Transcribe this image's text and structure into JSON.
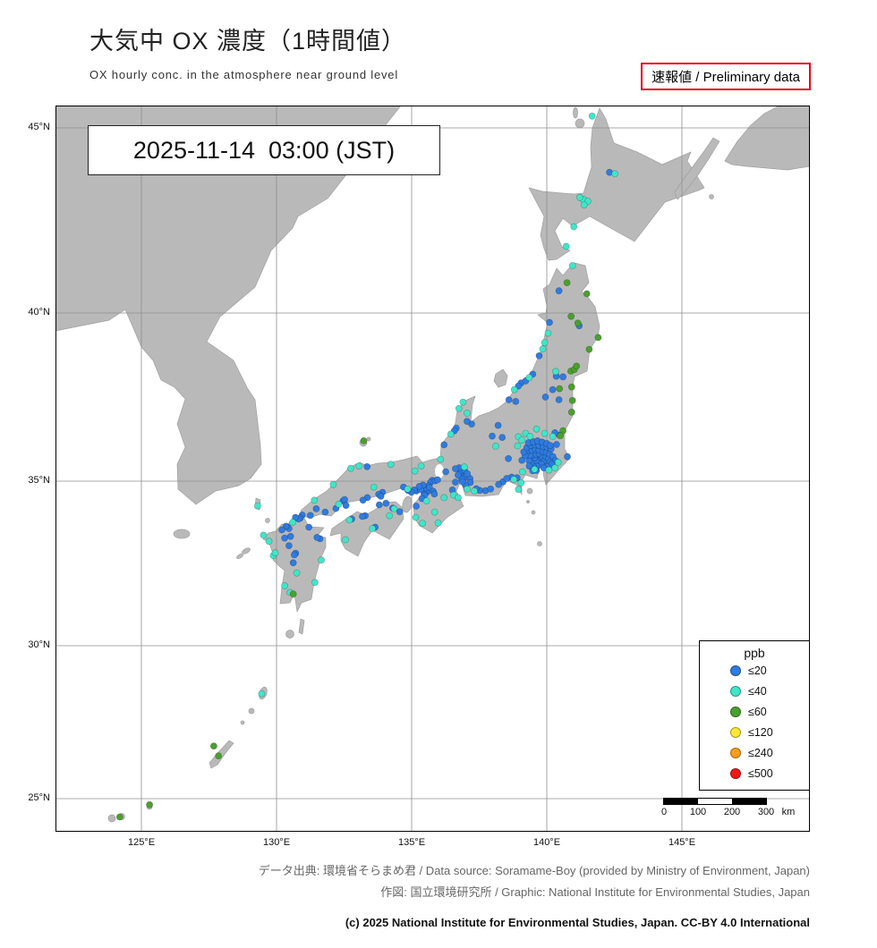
{
  "header": {
    "title": "大気中 OX 濃度（1時間値）",
    "subtitle": "OX hourly conc. in the atmosphere near ground level",
    "preliminary": "速報値 / Preliminary data"
  },
  "map": {
    "datetime": "2025-11-14  03:00 (JST)",
    "lat_ticks": [
      {
        "value": 45,
        "label": "45°N"
      },
      {
        "value": 40,
        "label": "40°N"
      },
      {
        "value": 35,
        "label": "35°N"
      },
      {
        "value": 30,
        "label": "30°N"
      },
      {
        "value": 25,
        "label": "25°N"
      }
    ],
    "lon_ticks": [
      {
        "value": 125,
        "label": "125°E"
      },
      {
        "value": 130,
        "label": "130°E"
      },
      {
        "value": 135,
        "label": "135°E"
      },
      {
        "value": 140,
        "label": "140°E"
      },
      {
        "value": 145,
        "label": "145°E"
      }
    ],
    "stations": [
      [
        142.32,
        43.8,
        0
      ],
      [
        140.45,
        40.6,
        0
      ],
      [
        140.1,
        39.72,
        0
      ],
      [
        139.72,
        38.73,
        0
      ],
      [
        140.35,
        38.12,
        0
      ],
      [
        140.45,
        37.42,
        0
      ],
      [
        139.95,
        37.5,
        0
      ],
      [
        140.22,
        37.72,
        0
      ],
      [
        141.2,
        39.62,
        0
      ],
      [
        140.6,
        38.1,
        0
      ],
      [
        139.05,
        37.92,
        0
      ],
      [
        138.95,
        37.83,
        0
      ],
      [
        139.22,
        37.98,
        0
      ],
      [
        138.85,
        37.37,
        0
      ],
      [
        138.6,
        37.42,
        0
      ],
      [
        139.48,
        38.18,
        0
      ],
      [
        138.2,
        36.66,
        0
      ],
      [
        137.98,
        36.34,
        0
      ],
      [
        138.58,
        35.67,
        0
      ],
      [
        138.35,
        36.3,
        0
      ],
      [
        137.22,
        36.7,
        0
      ],
      [
        137.05,
        36.78,
        0
      ],
      [
        136.65,
        36.58,
        0
      ],
      [
        136.58,
        36.5,
        0
      ],
      [
        136.2,
        36.08,
        0
      ],
      [
        139.7,
        35.68,
        0
      ],
      [
        139.76,
        35.62,
        0
      ],
      [
        139.63,
        35.57,
        0
      ],
      [
        139.55,
        35.7,
        0
      ],
      [
        139.47,
        35.77,
        0
      ],
      [
        139.6,
        35.8,
        0
      ],
      [
        139.72,
        35.81,
        0
      ],
      [
        139.85,
        35.7,
        0
      ],
      [
        139.91,
        35.61,
        0
      ],
      [
        139.96,
        35.73,
        0
      ],
      [
        140.06,
        35.66,
        0
      ],
      [
        140.12,
        35.57,
        0
      ],
      [
        139.8,
        35.51,
        0
      ],
      [
        139.65,
        35.44,
        0
      ],
      [
        139.5,
        35.44,
        0
      ],
      [
        139.42,
        35.54,
        0
      ],
      [
        139.34,
        35.61,
        0
      ],
      [
        139.38,
        35.77,
        0
      ],
      [
        139.3,
        35.9,
        0
      ],
      [
        139.45,
        35.92,
        0
      ],
      [
        139.58,
        35.95,
        0
      ],
      [
        139.71,
        35.92,
        0
      ],
      [
        139.86,
        35.88,
        0
      ],
      [
        139.99,
        35.86,
        0
      ],
      [
        140.11,
        35.8,
        0
      ],
      [
        140.23,
        35.73,
        0
      ],
      [
        140.32,
        35.61,
        0
      ],
      [
        140.18,
        35.5,
        0
      ],
      [
        140.0,
        35.44,
        0
      ],
      [
        139.89,
        35.39,
        0
      ],
      [
        140.76,
        35.73,
        0
      ],
      [
        139.2,
        35.76,
        0
      ],
      [
        139.15,
        35.87,
        0
      ],
      [
        139.26,
        36.0,
        0
      ],
      [
        139.41,
        36.06,
        0
      ],
      [
        139.56,
        36.08,
        0
      ],
      [
        139.71,
        36.06,
        0
      ],
      [
        139.86,
        36.03,
        0
      ],
      [
        140.01,
        36.01,
        0
      ],
      [
        140.16,
        35.96,
        0
      ],
      [
        139.32,
        36.14,
        0
      ],
      [
        139.5,
        36.17,
        0
      ],
      [
        139.66,
        36.2,
        0
      ],
      [
        139.83,
        36.16,
        0
      ],
      [
        140.0,
        36.12,
        0
      ],
      [
        140.13,
        36.06,
        0
      ],
      [
        140.36,
        36.09,
        0
      ],
      [
        140.47,
        36.37,
        0
      ],
      [
        140.3,
        36.44,
        0
      ],
      [
        139.08,
        35.62,
        0
      ],
      [
        139.35,
        35.45,
        0
      ],
      [
        139.62,
        35.32,
        0
      ],
      [
        139.48,
        35.31,
        0
      ],
      [
        138.38,
        34.98,
        0
      ],
      [
        138.22,
        34.9,
        0
      ],
      [
        137.73,
        34.71,
        0
      ],
      [
        137.92,
        34.76,
        0
      ],
      [
        138.9,
        35.1,
        0
      ],
      [
        138.7,
        35.12,
        0
      ],
      [
        138.52,
        35.08,
        0
      ],
      [
        137.52,
        34.72,
        0
      ],
      [
        136.91,
        35.17,
        0
      ],
      [
        136.96,
        35.1,
        0
      ],
      [
        136.85,
        35.06,
        0
      ],
      [
        136.8,
        35.3,
        0
      ],
      [
        136.95,
        35.33,
        0
      ],
      [
        136.76,
        35.4,
        0
      ],
      [
        136.62,
        35.37,
        0
      ],
      [
        136.62,
        34.97,
        0
      ],
      [
        136.51,
        34.73,
        0
      ],
      [
        137.16,
        35.08,
        0
      ],
      [
        137.17,
        34.96,
        0
      ],
      [
        137.39,
        34.77,
        0
      ],
      [
        137.0,
        34.88,
        0
      ],
      [
        136.88,
        34.98,
        0
      ],
      [
        137.06,
        35.22,
        0
      ],
      [
        136.72,
        35.18,
        0
      ],
      [
        135.76,
        35.02,
        0
      ],
      [
        135.7,
        34.96,
        0
      ],
      [
        135.87,
        35.01,
        0
      ],
      [
        135.96,
        35.04,
        0
      ],
      [
        136.26,
        35.28,
        0
      ],
      [
        135.5,
        34.69,
        0
      ],
      [
        135.56,
        34.66,
        0
      ],
      [
        135.46,
        34.62,
        0
      ],
      [
        135.6,
        34.73,
        0
      ],
      [
        135.53,
        34.79,
        0
      ],
      [
        135.63,
        34.86,
        0
      ],
      [
        135.66,
        34.81,
        0
      ],
      [
        135.18,
        34.7,
        0
      ],
      [
        135.1,
        34.73,
        0
      ],
      [
        134.99,
        34.66,
        0
      ],
      [
        134.7,
        34.82,
        0
      ],
      [
        134.86,
        34.72,
        0
      ],
      [
        135.8,
        34.69,
        0
      ],
      [
        135.84,
        34.61,
        0
      ],
      [
        135.17,
        34.24,
        0
      ],
      [
        135.48,
        34.57,
        0
      ],
      [
        135.38,
        34.47,
        0
      ],
      [
        135.33,
        34.75,
        0
      ],
      [
        135.42,
        34.88,
        0
      ],
      [
        135.28,
        34.84,
        0
      ],
      [
        133.92,
        34.66,
        0
      ],
      [
        133.78,
        34.6,
        0
      ],
      [
        133.86,
        34.54,
        0
      ],
      [
        133.36,
        34.5,
        0
      ],
      [
        133.2,
        34.42,
        0
      ],
      [
        132.46,
        34.4,
        0
      ],
      [
        132.52,
        34.44,
        0
      ],
      [
        132.57,
        34.26,
        0
      ],
      [
        132.2,
        34.17,
        0
      ],
      [
        131.8,
        34.06,
        0
      ],
      [
        131.25,
        33.96,
        0
      ],
      [
        130.95,
        33.97,
        0
      ],
      [
        133.35,
        35.43,
        0
      ],
      [
        131.47,
        34.16,
        0
      ],
      [
        134.05,
        34.33,
        0
      ],
      [
        133.8,
        34.28,
        0
      ],
      [
        134.56,
        34.07,
        0
      ],
      [
        133.28,
        33.95,
        0
      ],
      [
        132.78,
        33.85,
        0
      ],
      [
        133.18,
        33.93,
        0
      ],
      [
        133.65,
        33.6,
        0
      ],
      [
        134.3,
        34.18,
        0
      ],
      [
        130.88,
        33.88,
        0
      ],
      [
        130.82,
        33.85,
        0
      ],
      [
        130.7,
        33.9,
        0
      ],
      [
        130.41,
        33.6,
        0
      ],
      [
        130.46,
        33.56,
        0
      ],
      [
        130.35,
        33.63,
        0
      ],
      [
        130.52,
        33.32,
        0
      ],
      [
        130.3,
        33.27,
        0
      ],
      [
        130.46,
        33.04,
        0
      ],
      [
        130.71,
        32.81,
        0
      ],
      [
        130.66,
        32.76,
        0
      ],
      [
        130.62,
        32.52,
        0
      ],
      [
        131.61,
        33.25,
        0
      ],
      [
        131.5,
        33.29,
        0
      ],
      [
        131.2,
        33.6,
        0
      ],
      [
        130.2,
        33.52,
        0
      ],
      [
        141.68,
        45.32,
        1
      ],
      [
        142.52,
        43.76,
        1
      ],
      [
        141.35,
        43.07,
        1
      ],
      [
        141.52,
        43.02,
        1
      ],
      [
        141.22,
        43.12,
        1
      ],
      [
        141.38,
        42.92,
        1
      ],
      [
        140.72,
        41.8,
        1
      ],
      [
        141.0,
        42.33,
        1
      ],
      [
        140.95,
        41.28,
        1
      ],
      [
        139.85,
        38.93,
        1
      ],
      [
        140.33,
        38.26,
        1
      ],
      [
        139.92,
        39.12,
        1
      ],
      [
        140.05,
        39.4,
        1
      ],
      [
        138.8,
        37.72,
        1
      ],
      [
        139.35,
        38.08,
        1
      ],
      [
        136.9,
        37.35,
        1
      ],
      [
        137.05,
        37.02,
        1
      ],
      [
        136.75,
        37.16,
        1
      ],
      [
        136.45,
        36.4,
        1
      ],
      [
        138.95,
        36.32,
        1
      ],
      [
        139.08,
        36.22,
        1
      ],
      [
        139.22,
        36.42,
        1
      ],
      [
        139.38,
        36.33,
        1
      ],
      [
        139.62,
        36.55,
        1
      ],
      [
        139.92,
        36.42,
        1
      ],
      [
        140.22,
        36.33,
        1
      ],
      [
        138.92,
        36.05,
        1
      ],
      [
        138.11,
        36.04,
        1
      ],
      [
        139.05,
        34.95,
        1
      ],
      [
        138.95,
        34.75,
        1
      ],
      [
        138.78,
        35.05,
        1
      ],
      [
        140.3,
        35.4,
        1
      ],
      [
        140.42,
        35.56,
        1
      ],
      [
        137.05,
        34.76,
        1
      ],
      [
        136.55,
        34.58,
        1
      ],
      [
        136.72,
        34.5,
        1
      ],
      [
        137.32,
        34.7,
        1
      ],
      [
        135.4,
        33.72,
        1
      ],
      [
        135.98,
        33.73,
        1
      ],
      [
        135.15,
        33.9,
        1
      ],
      [
        135.85,
        34.06,
        1
      ],
      [
        136.2,
        34.5,
        1
      ],
      [
        135.35,
        35.45,
        1
      ],
      [
        135.12,
        35.3,
        1
      ],
      [
        136.07,
        35.65,
        1
      ],
      [
        133.05,
        35.45,
        1
      ],
      [
        132.75,
        35.38,
        1
      ],
      [
        134.23,
        35.5,
        1
      ],
      [
        131.4,
        34.42,
        1
      ],
      [
        132.1,
        34.9,
        1
      ],
      [
        133.6,
        34.82,
        1
      ],
      [
        133.55,
        33.56,
        1
      ],
      [
        132.7,
        33.82,
        1
      ],
      [
        132.55,
        33.22,
        1
      ],
      [
        134.18,
        33.95,
        1
      ],
      [
        134.35,
        34.16,
        1
      ],
      [
        129.88,
        32.74,
        1
      ],
      [
        129.95,
        32.82,
        1
      ],
      [
        129.72,
        33.17,
        1
      ],
      [
        129.52,
        33.36,
        1
      ],
      [
        129.3,
        34.25,
        1
      ],
      [
        130.3,
        31.82,
        1
      ],
      [
        130.5,
        31.62,
        1
      ],
      [
        131.42,
        31.92,
        1
      ],
      [
        131.66,
        32.6,
        1
      ],
      [
        130.75,
        32.21,
        1
      ],
      [
        129.45,
        28.43,
        1
      ],
      [
        139.55,
        35.35,
        1
      ],
      [
        139.1,
        35.28,
        1
      ],
      [
        140.08,
        35.33,
        1
      ],
      [
        136.95,
        35.42,
        1
      ],
      [
        135.55,
        34.4,
        1
      ],
      [
        134.85,
        34.76,
        1
      ],
      [
        132.3,
        34.3,
        1
      ],
      [
        130.6,
        33.75,
        1
      ],
      [
        140.75,
        40.82,
        2
      ],
      [
        141.48,
        40.52,
        2
      ],
      [
        141.15,
        39.7,
        2
      ],
      [
        141.9,
        39.27,
        2
      ],
      [
        141.57,
        38.92,
        2
      ],
      [
        140.89,
        38.27,
        2
      ],
      [
        141.02,
        38.32,
        2
      ],
      [
        140.92,
        37.8,
        2
      ],
      [
        140.47,
        37.75,
        2
      ],
      [
        140.92,
        37.05,
        2
      ],
      [
        140.95,
        37.4,
        2
      ],
      [
        140.6,
        36.5,
        2
      ],
      [
        140.5,
        36.35,
        2
      ],
      [
        140.9,
        39.9,
        2
      ],
      [
        141.1,
        38.42,
        2
      ],
      [
        133.23,
        36.2,
        2
      ],
      [
        130.62,
        31.57,
        2
      ],
      [
        127.68,
        26.72,
        2
      ],
      [
        127.85,
        26.4,
        2
      ],
      [
        125.3,
        24.8,
        2
      ],
      [
        124.2,
        24.4,
        2
      ]
    ]
  },
  "legend": {
    "title": "ppb",
    "items": [
      {
        "key": "le20",
        "label": "≤20",
        "color": "#2f7be0"
      },
      {
        "key": "le40",
        "label": "≤40",
        "color": "#3fe6c8"
      },
      {
        "key": "le60",
        "label": "≤60",
        "color": "#4aa02d"
      },
      {
        "key": "le120",
        "label": "≤120",
        "color": "#ffe838"
      },
      {
        "key": "le240",
        "label": "≤240",
        "color": "#ff9d20"
      },
      {
        "key": "le500",
        "label": "≤500",
        "color": "#f21818"
      }
    ]
  },
  "scalebar": {
    "labels": [
      "0",
      "100",
      "200",
      "300"
    ],
    "unit": "km"
  },
  "footer": {
    "source": "データ出典: 環境省そらまめ君 / Data source: Soramame-Boy (provided by Ministry of Environment, Japan)",
    "graphic": "作図: 国立環境研究所 / Graphic: National Institute for Environmental Studies, Japan",
    "copyright": "(c) 2025 National Institute for Environmental Studies, Japan. CC-BY 4.0 International"
  },
  "colors": {
    "land": "#b9b9b9",
    "coast": "#a0a0a0",
    "sea": "#ffffff",
    "grid": "#8f8f8f",
    "frame": "#000000"
  }
}
